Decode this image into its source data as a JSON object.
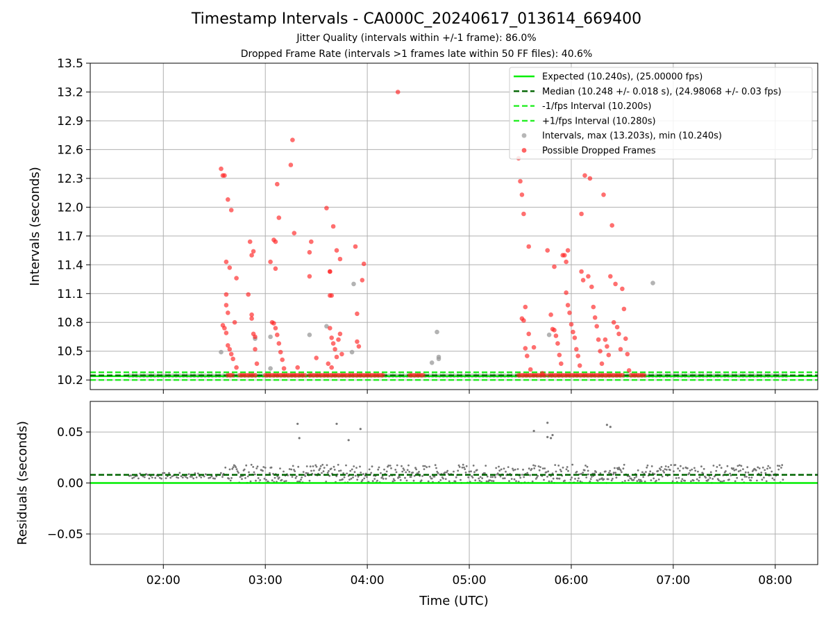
{
  "figure": {
    "title": "Timestamp Intervals - CA000C_20240617_013614_669400",
    "subtitle1": "Jitter Quality (intervals within +/-1 frame): 86.0%",
    "subtitle2": "Dropped Frame Rate (intervals >1 frames late within 50 FF files): 40.6%"
  },
  "colors": {
    "expected": "#00ee00",
    "median": "#006400",
    "interval_band": "#22ee22",
    "intervals": "#999999",
    "dropped": "#ff2222",
    "residuals": "#777777",
    "grid": "#b0b0b0"
  },
  "chart_data": [
    {
      "type": "scatter",
      "panel": "top",
      "ylabel": "Intervals (seconds)",
      "xlabel": "",
      "ylim": [
        10.1,
        13.5
      ],
      "xlim": [
        "01:17",
        "08:25"
      ],
      "yticks": [
        "10.2",
        "10.5",
        "10.8",
        "11.1",
        "11.4",
        "11.7",
        "12.0",
        "12.3",
        "12.6",
        "12.9",
        "13.2",
        "13.5"
      ],
      "xticks": [
        "02:00",
        "03:00",
        "04:00",
        "05:00",
        "06:00",
        "07:00",
        "08:00"
      ],
      "grid": true,
      "legend_position": "top-right",
      "lines": [
        {
          "name": "Expected (10.240s), (25.00000 fps)",
          "y": 10.24,
          "style": "solid"
        },
        {
          "name": "Median (10.248 +/- 0.018 s), (24.98068 +/- 0.03 fps)",
          "y": 10.248,
          "style": "dashed"
        },
        {
          "name": "-1/fps Interval (10.200s)",
          "y": 10.2,
          "style": "dashed"
        },
        {
          "name": "+1/fps Interval (10.280s)",
          "y": 10.28,
          "style": "dashed"
        }
      ],
      "series": [
        {
          "name": "Intervals, max (13.203s), min (10.240s)",
          "points": [
            [
              "02:34",
              10.49
            ],
            [
              "02:54",
              10.63
            ],
            [
              "03:03",
              10.32
            ],
            [
              "03:03",
              10.65
            ],
            [
              "03:26",
              10.67
            ],
            [
              "03:36",
              10.76
            ],
            [
              "03:51",
              10.49
            ],
            [
              "03:52",
              11.2
            ],
            [
              "04:38",
              10.38
            ],
            [
              "04:41",
              10.7
            ],
            [
              "04:42",
              10.44
            ],
            [
              "04:42",
              10.42
            ],
            [
              "05:47",
              10.67
            ],
            [
              "06:48",
              11.21
            ]
          ]
        },
        {
          "name": "Possible Dropped Frames",
          "points": [
            [
              "02:34",
              12.4
            ],
            [
              "02:35",
              12.33
            ],
            [
              "02:36",
              12.33
            ],
            [
              "02:38",
              12.08
            ],
            [
              "02:40",
              11.97
            ],
            [
              "02:37",
              11.43
            ],
            [
              "02:39",
              11.37
            ],
            [
              "02:43",
              11.26
            ],
            [
              "02:37",
              11.09
            ],
            [
              "02:37",
              10.98
            ],
            [
              "02:38",
              10.9
            ],
            [
              "02:35",
              10.77
            ],
            [
              "02:36",
              10.74
            ],
            [
              "02:37",
              10.69
            ],
            [
              "02:38",
              10.56
            ],
            [
              "02:39",
              10.52
            ],
            [
              "02:40",
              10.47
            ],
            [
              "02:41",
              10.42
            ],
            [
              "02:42",
              10.8
            ],
            [
              "02:43",
              10.33
            ],
            [
              "02:50",
              11.09
            ],
            [
              "02:51",
              11.64
            ],
            [
              "02:52",
              11.5
            ],
            [
              "02:53",
              11.54
            ],
            [
              "02:52",
              10.88
            ],
            [
              "02:52",
              10.84
            ],
            [
              "02:53",
              10.68
            ],
            [
              "02:54",
              10.65
            ],
            [
              "02:54",
              10.52
            ],
            [
              "02:55",
              10.37
            ],
            [
              "03:05",
              11.66
            ],
            [
              "03:06",
              11.64
            ],
            [
              "03:08",
              11.89
            ],
            [
              "03:07",
              12.24
            ],
            [
              "03:03",
              11.43
            ],
            [
              "03:06",
              11.36
            ],
            [
              "03:04",
              10.8
            ],
            [
              "03:05",
              10.79
            ],
            [
              "03:06",
              10.74
            ],
            [
              "03:07",
              10.67
            ],
            [
              "03:08",
              10.58
            ],
            [
              "03:09",
              10.49
            ],
            [
              "03:10",
              10.41
            ],
            [
              "03:11",
              10.32
            ],
            [
              "03:15",
              12.44
            ],
            [
              "03:16",
              12.7
            ],
            [
              "03:17",
              11.73
            ],
            [
              "03:19",
              10.33
            ],
            [
              "03:26",
              11.28
            ],
            [
              "03:27",
              11.64
            ],
            [
              "03:26",
              11.53
            ],
            [
              "03:30",
              10.43
            ],
            [
              "03:36",
              11.99
            ],
            [
              "03:38",
              11.33
            ],
            [
              "03:38",
              11.33
            ],
            [
              "03:40",
              11.8
            ],
            [
              "03:42",
              11.55
            ],
            [
              "03:44",
              11.46
            ],
            [
              "03:38",
              11.08
            ],
            [
              "03:39",
              11.08
            ],
            [
              "03:38",
              10.74
            ],
            [
              "03:39",
              10.64
            ],
            [
              "03:40",
              10.58
            ],
            [
              "03:41",
              10.52
            ],
            [
              "03:42",
              10.44
            ],
            [
              "03:43",
              10.62
            ],
            [
              "03:44",
              10.68
            ],
            [
              "03:45",
              10.47
            ],
            [
              "03:37",
              10.37
            ],
            [
              "03:39",
              10.33
            ],
            [
              "03:53",
              11.59
            ],
            [
              "03:54",
              10.89
            ],
            [
              "03:54",
              10.6
            ],
            [
              "03:55",
              10.55
            ],
            [
              "03:58",
              11.41
            ],
            [
              "03:57",
              11.24
            ],
            [
              "04:18",
              13.2
            ],
            [
              "05:29",
              12.51
            ],
            [
              "05:30",
              12.27
            ],
            [
              "05:31",
              12.13
            ],
            [
              "05:32",
              11.93
            ],
            [
              "05:35",
              11.59
            ],
            [
              "05:33",
              10.96
            ],
            [
              "05:31",
              10.84
            ],
            [
              "05:32",
              10.82
            ],
            [
              "05:33",
              10.53
            ],
            [
              "05:34",
              10.45
            ],
            [
              "05:35",
              10.68
            ],
            [
              "05:36",
              10.31
            ],
            [
              "05:38",
              10.54
            ],
            [
              "05:43",
              10.27
            ],
            [
              "05:46",
              11.55
            ],
            [
              "05:50",
              11.38
            ],
            [
              "05:48",
              10.88
            ],
            [
              "05:49",
              10.73
            ],
            [
              "05:50",
              10.72
            ],
            [
              "05:51",
              10.66
            ],
            [
              "05:52",
              10.58
            ],
            [
              "05:53",
              10.46
            ],
            [
              "05:54",
              10.37
            ],
            [
              "05:55",
              11.5
            ],
            [
              "05:56",
              11.5
            ],
            [
              "05:57",
              11.43
            ],
            [
              "05:58",
              11.55
            ],
            [
              "05:57",
              11.11
            ],
            [
              "05:58",
              10.98
            ],
            [
              "05:59",
              10.9
            ],
            [
              "06:00",
              10.78
            ],
            [
              "06:01",
              10.7
            ],
            [
              "06:02",
              10.64
            ],
            [
              "06:03",
              10.52
            ],
            [
              "06:04",
              10.45
            ],
            [
              "06:05",
              10.35
            ],
            [
              "06:06",
              11.33
            ],
            [
              "06:06",
              11.93
            ],
            [
              "06:08",
              12.33
            ],
            [
              "06:07",
              11.24
            ],
            [
              "06:10",
              11.28
            ],
            [
              "06:11",
              12.3
            ],
            [
              "06:12",
              11.17
            ],
            [
              "06:13",
              10.96
            ],
            [
              "06:14",
              10.85
            ],
            [
              "06:15",
              10.76
            ],
            [
              "06:16",
              10.62
            ],
            [
              "06:17",
              10.5
            ],
            [
              "06:18",
              10.37
            ],
            [
              "06:19",
              12.13
            ],
            [
              "06:20",
              10.62
            ],
            [
              "06:21",
              10.55
            ],
            [
              "06:22",
              10.46
            ],
            [
              "06:23",
              11.28
            ],
            [
              "06:24",
              11.81
            ],
            [
              "06:25",
              10.8
            ],
            [
              "06:26",
              11.2
            ],
            [
              "06:27",
              10.75
            ],
            [
              "06:28",
              10.68
            ],
            [
              "06:29",
              10.52
            ],
            [
              "06:30",
              11.15
            ],
            [
              "06:31",
              10.94
            ],
            [
              "06:32",
              10.63
            ],
            [
              "06:33",
              10.47
            ],
            [
              "06:34",
              10.3
            ]
          ],
          "baseline_segments": [
            [
              "02:38",
              "02:41"
            ],
            [
              "02:45",
              "02:55"
            ],
            [
              "03:00",
              "03:17"
            ],
            [
              "03:18",
              "03:24"
            ],
            [
              "03:26",
              "04:10"
            ],
            [
              "04:25",
              "04:33"
            ],
            [
              "05:29",
              "05:45"
            ],
            [
              "05:47",
              "06:31"
            ],
            [
              "06:35",
              "06:43"
            ]
          ]
        }
      ]
    },
    {
      "type": "scatter",
      "panel": "bottom",
      "ylabel": "Residuals (seconds)",
      "xlabel": "Time (UTC)",
      "ylim": [
        -0.08,
        0.08
      ],
      "xlim": [
        "01:17",
        "08:25"
      ],
      "yticks": [
        "−0.05",
        "0.00",
        "0.05"
      ],
      "xticks": [
        "02:00",
        "03:00",
        "04:00",
        "05:00",
        "06:00",
        "07:00",
        "08:00"
      ],
      "grid": true,
      "lines": [
        {
          "name": "Expected",
          "y": 0.0,
          "style": "solid"
        },
        {
          "name": "Median",
          "y": 0.008,
          "style": "dashed"
        }
      ],
      "series": [
        {
          "name": "Residuals",
          "points": [
            [
              "03:19",
              0.058
            ],
            [
              "03:20",
              0.044
            ],
            [
              "03:42",
              0.058
            ],
            [
              "03:49",
              0.042
            ],
            [
              "03:56",
              0.053
            ],
            [
              "05:38",
              0.051
            ],
            [
              "05:46",
              0.045
            ],
            [
              "05:46",
              0.059
            ],
            [
              "05:48",
              0.044
            ],
            [
              "05:49",
              0.047
            ],
            [
              "06:21",
              0.057
            ],
            [
              "06:23",
              0.055
            ]
          ],
          "band_segments": [
            {
              "from": "01:40",
              "to": "02:35",
              "ymin": 0.004,
              "ymax": 0.01
            },
            {
              "from": "02:35",
              "to": "06:10",
              "ymin": 0.0,
              "ymax": 0.018
            },
            {
              "from": "06:10",
              "to": "06:25",
              "ymin": 0.0,
              "ymax": 0.012
            },
            {
              "from": "06:25",
              "to": "08:05",
              "ymin": 0.0,
              "ymax": 0.018
            }
          ]
        }
      ]
    }
  ]
}
